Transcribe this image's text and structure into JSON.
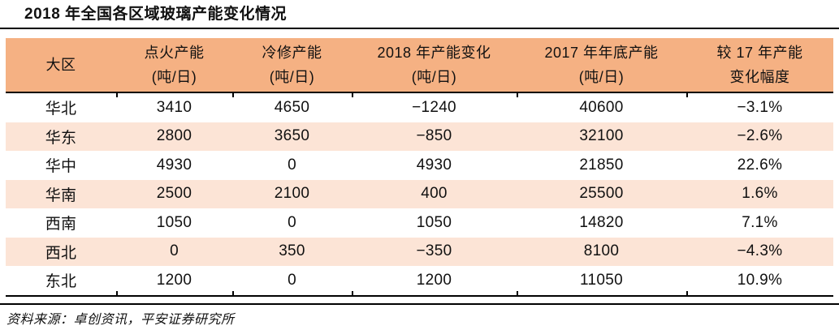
{
  "title": "2018 年全国各区域玻璃产能变化情况",
  "source_note": "资料来源：卓创资讯，平安证券研究所",
  "colors": {
    "header_bg": "#F5B183",
    "row_alt_bg": "#FCE4D6",
    "row_bg": "#FFFFFF",
    "rule": "#000000",
    "text": "#111111"
  },
  "table": {
    "columns": [
      {
        "line1": "大区",
        "line2": ""
      },
      {
        "line1": "点火产能",
        "line2": "(吨/日)"
      },
      {
        "line1": "冷修产能",
        "line2": "(吨/日)"
      },
      {
        "line1": "2018 年产能变化",
        "line2": "(吨/日)"
      },
      {
        "line1": "2017 年年底产能",
        "line2": "(吨/日)"
      },
      {
        "line1": "较 17 年产能",
        "line2": "变化幅度"
      }
    ],
    "rows": [
      {
        "cells": [
          "华北",
          "3410",
          "4650",
          "−1240",
          "40600",
          "−3.1%"
        ]
      },
      {
        "cells": [
          "华东",
          "2800",
          "3650",
          "−850",
          "32100",
          "−2.6%"
        ]
      },
      {
        "cells": [
          "华中",
          "4930",
          "0",
          "4930",
          "21850",
          "22.6%"
        ]
      },
      {
        "cells": [
          "华南",
          "2500",
          "2100",
          "400",
          "25500",
          "1.6%"
        ]
      },
      {
        "cells": [
          "西南",
          "1050",
          "0",
          "1050",
          "14820",
          "7.1%"
        ]
      },
      {
        "cells": [
          "西北",
          "0",
          "350",
          "−350",
          "8100",
          "−4.3%"
        ]
      },
      {
        "cells": [
          "东北",
          "1200",
          "0",
          "1200",
          "11050",
          "10.9%"
        ]
      }
    ]
  }
}
